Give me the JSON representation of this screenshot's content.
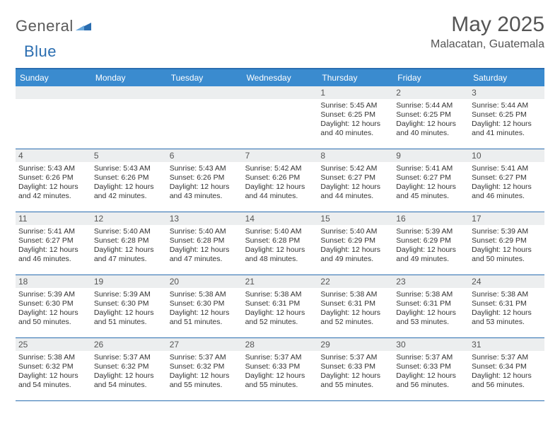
{
  "logo": {
    "part1": "General",
    "part2": "Blue"
  },
  "header": {
    "title": "May 2025",
    "location": "Malacatan, Guatemala"
  },
  "colors": {
    "header_bg": "#3a8bcf",
    "border": "#2a6db0",
    "daynum_bg": "#eceeef"
  },
  "dayNames": [
    "Sunday",
    "Monday",
    "Tuesday",
    "Wednesday",
    "Thursday",
    "Friday",
    "Saturday"
  ],
  "weeks": [
    [
      null,
      null,
      null,
      null,
      {
        "n": "1",
        "sr": "5:45 AM",
        "ss": "6:25 PM",
        "d1": "12 hours",
        "d2": "and 40 minutes."
      },
      {
        "n": "2",
        "sr": "5:44 AM",
        "ss": "6:25 PM",
        "d1": "12 hours",
        "d2": "and 40 minutes."
      },
      {
        "n": "3",
        "sr": "5:44 AM",
        "ss": "6:25 PM",
        "d1": "12 hours",
        "d2": "and 41 minutes."
      }
    ],
    [
      {
        "n": "4",
        "sr": "5:43 AM",
        "ss": "6:26 PM",
        "d1": "12 hours",
        "d2": "and 42 minutes."
      },
      {
        "n": "5",
        "sr": "5:43 AM",
        "ss": "6:26 PM",
        "d1": "12 hours",
        "d2": "and 42 minutes."
      },
      {
        "n": "6",
        "sr": "5:43 AM",
        "ss": "6:26 PM",
        "d1": "12 hours",
        "d2": "and 43 minutes."
      },
      {
        "n": "7",
        "sr": "5:42 AM",
        "ss": "6:26 PM",
        "d1": "12 hours",
        "d2": "and 44 minutes."
      },
      {
        "n": "8",
        "sr": "5:42 AM",
        "ss": "6:27 PM",
        "d1": "12 hours",
        "d2": "and 44 minutes."
      },
      {
        "n": "9",
        "sr": "5:41 AM",
        "ss": "6:27 PM",
        "d1": "12 hours",
        "d2": "and 45 minutes."
      },
      {
        "n": "10",
        "sr": "5:41 AM",
        "ss": "6:27 PM",
        "d1": "12 hours",
        "d2": "and 46 minutes."
      }
    ],
    [
      {
        "n": "11",
        "sr": "5:41 AM",
        "ss": "6:27 PM",
        "d1": "12 hours",
        "d2": "and 46 minutes."
      },
      {
        "n": "12",
        "sr": "5:40 AM",
        "ss": "6:28 PM",
        "d1": "12 hours",
        "d2": "and 47 minutes."
      },
      {
        "n": "13",
        "sr": "5:40 AM",
        "ss": "6:28 PM",
        "d1": "12 hours",
        "d2": "and 47 minutes."
      },
      {
        "n": "14",
        "sr": "5:40 AM",
        "ss": "6:28 PM",
        "d1": "12 hours",
        "d2": "and 48 minutes."
      },
      {
        "n": "15",
        "sr": "5:40 AM",
        "ss": "6:29 PM",
        "d1": "12 hours",
        "d2": "and 49 minutes."
      },
      {
        "n": "16",
        "sr": "5:39 AM",
        "ss": "6:29 PM",
        "d1": "12 hours",
        "d2": "and 49 minutes."
      },
      {
        "n": "17",
        "sr": "5:39 AM",
        "ss": "6:29 PM",
        "d1": "12 hours",
        "d2": "and 50 minutes."
      }
    ],
    [
      {
        "n": "18",
        "sr": "5:39 AM",
        "ss": "6:30 PM",
        "d1": "12 hours",
        "d2": "and 50 minutes."
      },
      {
        "n": "19",
        "sr": "5:39 AM",
        "ss": "6:30 PM",
        "d1": "12 hours",
        "d2": "and 51 minutes."
      },
      {
        "n": "20",
        "sr": "5:38 AM",
        "ss": "6:30 PM",
        "d1": "12 hours",
        "d2": "and 51 minutes."
      },
      {
        "n": "21",
        "sr": "5:38 AM",
        "ss": "6:31 PM",
        "d1": "12 hours",
        "d2": "and 52 minutes."
      },
      {
        "n": "22",
        "sr": "5:38 AM",
        "ss": "6:31 PM",
        "d1": "12 hours",
        "d2": "and 52 minutes."
      },
      {
        "n": "23",
        "sr": "5:38 AM",
        "ss": "6:31 PM",
        "d1": "12 hours",
        "d2": "and 53 minutes."
      },
      {
        "n": "24",
        "sr": "5:38 AM",
        "ss": "6:31 PM",
        "d1": "12 hours",
        "d2": "and 53 minutes."
      }
    ],
    [
      {
        "n": "25",
        "sr": "5:38 AM",
        "ss": "6:32 PM",
        "d1": "12 hours",
        "d2": "and 54 minutes."
      },
      {
        "n": "26",
        "sr": "5:37 AM",
        "ss": "6:32 PM",
        "d1": "12 hours",
        "d2": "and 54 minutes."
      },
      {
        "n": "27",
        "sr": "5:37 AM",
        "ss": "6:32 PM",
        "d1": "12 hours",
        "d2": "and 55 minutes."
      },
      {
        "n": "28",
        "sr": "5:37 AM",
        "ss": "6:33 PM",
        "d1": "12 hours",
        "d2": "and 55 minutes."
      },
      {
        "n": "29",
        "sr": "5:37 AM",
        "ss": "6:33 PM",
        "d1": "12 hours",
        "d2": "and 55 minutes."
      },
      {
        "n": "30",
        "sr": "5:37 AM",
        "ss": "6:33 PM",
        "d1": "12 hours",
        "d2": "and 56 minutes."
      },
      {
        "n": "31",
        "sr": "5:37 AM",
        "ss": "6:34 PM",
        "d1": "12 hours",
        "d2": "and 56 minutes."
      }
    ]
  ]
}
